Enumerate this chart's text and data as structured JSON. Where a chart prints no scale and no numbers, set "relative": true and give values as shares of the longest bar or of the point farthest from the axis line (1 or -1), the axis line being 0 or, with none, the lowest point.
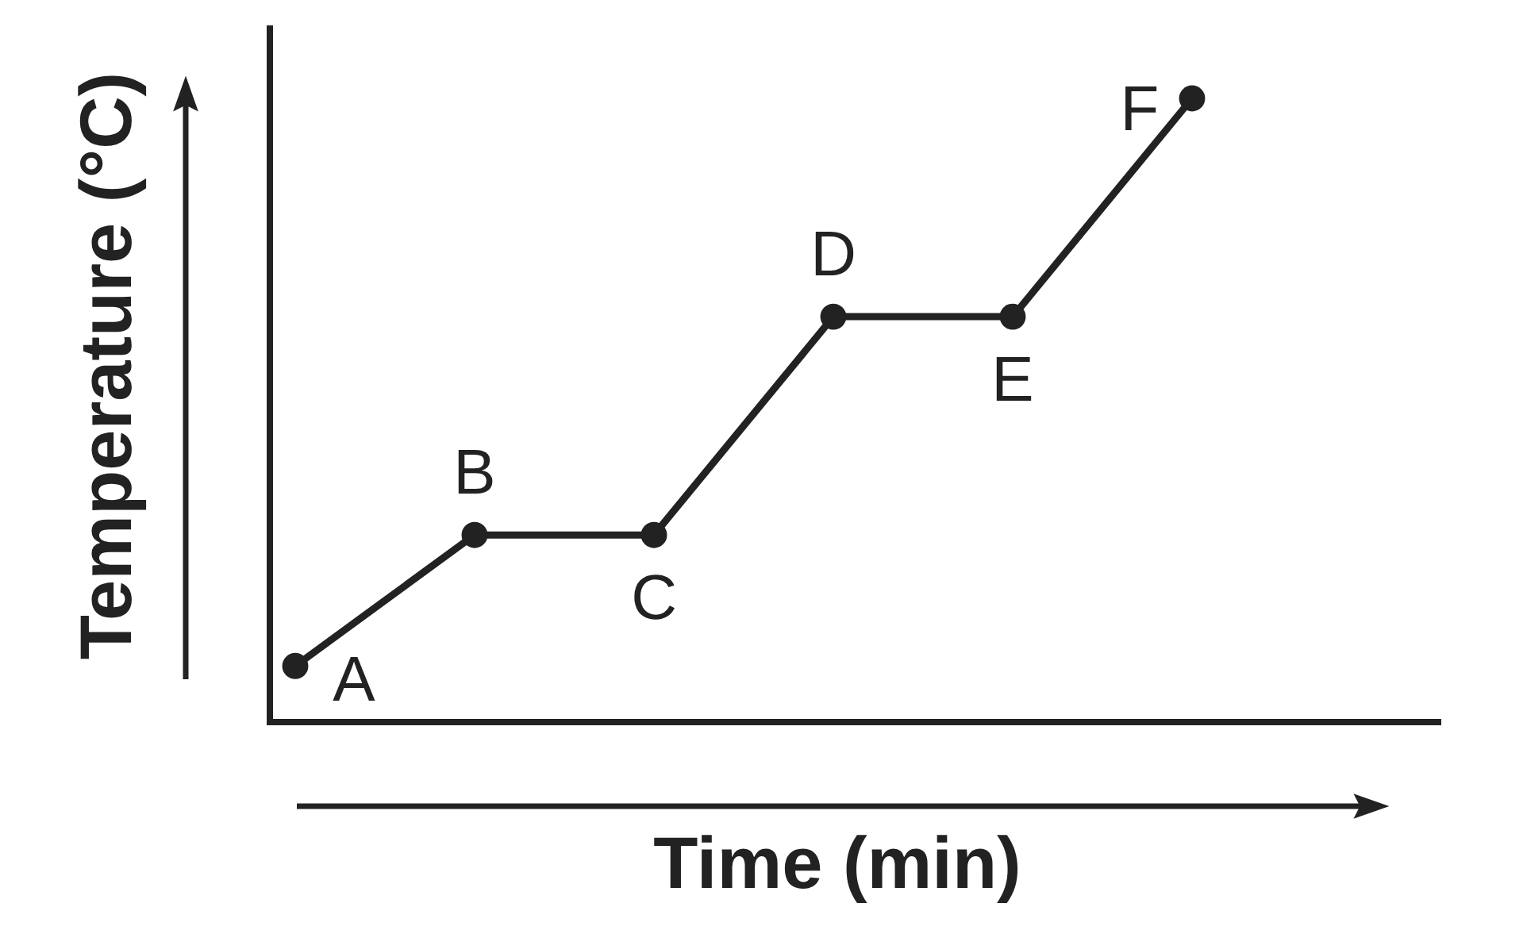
{
  "chart_data": {
    "type": "line",
    "xlabel": "Time (min)",
    "ylabel": "Temperature (°C)",
    "relative": true,
    "marker": "circle",
    "line_style": "solid",
    "categories": [
      null,
      null,
      null,
      null,
      null,
      null
    ],
    "series": [
      {
        "color": "#222222",
        "values": [
          0.09,
          0.3,
          0.3,
          0.65,
          0.65,
          1
        ]
      }
    ],
    "annotations": [
      "A",
      "B",
      "C",
      "D",
      "E",
      "F"
    ]
  }
}
